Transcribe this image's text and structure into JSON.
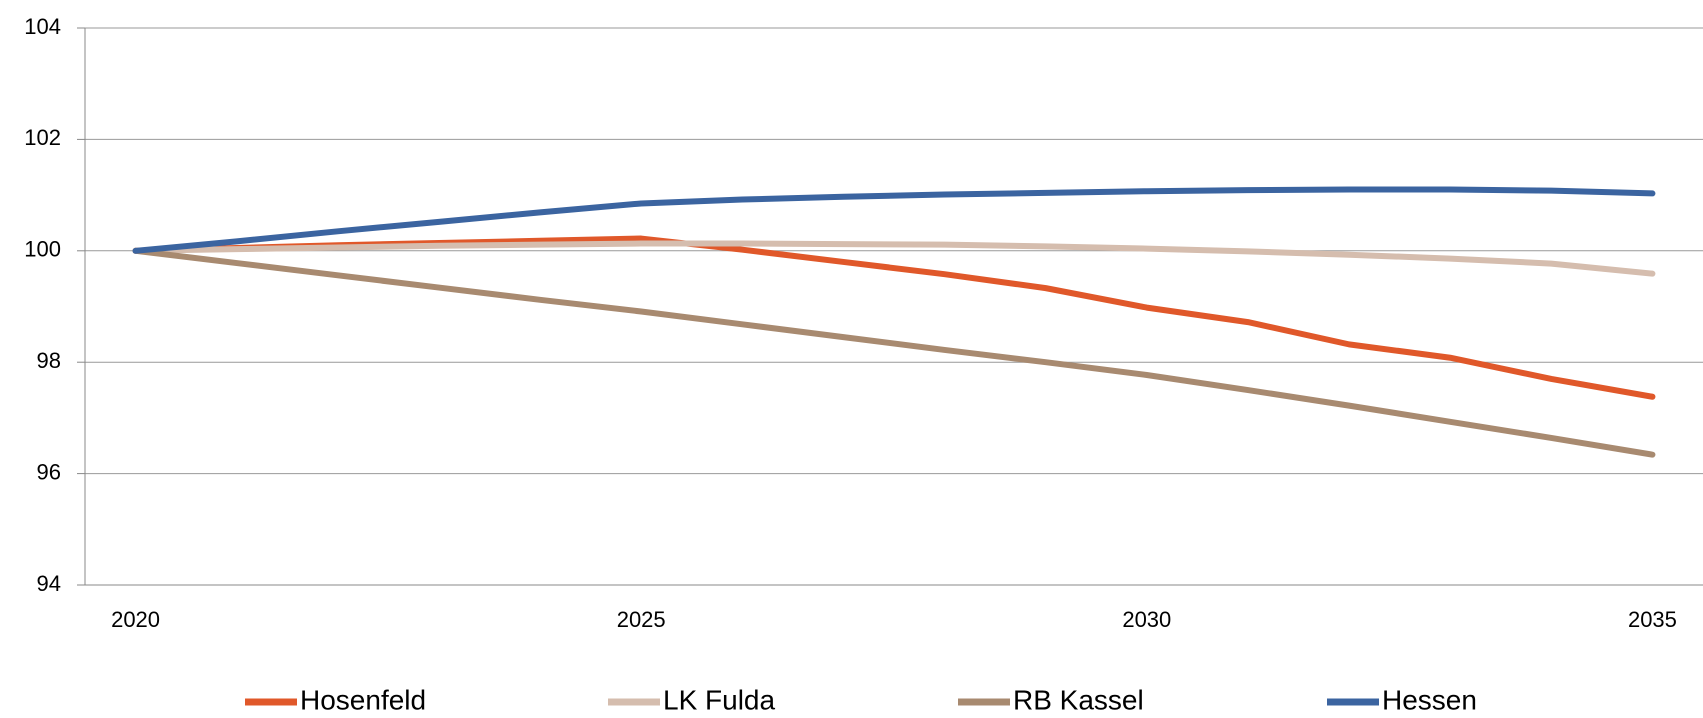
{
  "chart_data": {
    "type": "line",
    "x": [
      2020,
      2021,
      2022,
      2023,
      2024,
      2025,
      2026,
      2027,
      2028,
      2029,
      2030,
      2031,
      2032,
      2033,
      2034,
      2035
    ],
    "series": [
      {
        "name": "Hosenfeld",
        "color": "#e0582a",
        "values": [
          100,
          100.05,
          100.1,
          100.14,
          100.18,
          100.22,
          100.02,
          99.8,
          99.58,
          99.33,
          98.98,
          98.72,
          98.32,
          98.08,
          97.7,
          97.38
        ]
      },
      {
        "name": "LK Fulda",
        "color": "#d5bdae",
        "values": [
          100,
          100.03,
          100.06,
          100.09,
          100.11,
          100.13,
          100.13,
          100.12,
          100.11,
          100.08,
          100.04,
          99.99,
          99.93,
          99.86,
          99.77,
          99.59
        ]
      },
      {
        "name": "RB Kassel",
        "color": "#a88a70",
        "values": [
          100,
          99.78,
          99.56,
          99.34,
          99.12,
          98.91,
          98.68,
          98.45,
          98.22,
          98.0,
          97.77,
          97.5,
          97.22,
          96.93,
          96.64,
          96.34
        ]
      },
      {
        "name": "Hessen",
        "color": "#3b64a0",
        "values": [
          100,
          100.17,
          100.35,
          100.52,
          100.69,
          100.85,
          100.92,
          100.97,
          101.01,
          101.04,
          101.07,
          101.09,
          101.1,
          101.1,
          101.08,
          101.03
        ]
      }
    ],
    "xlim": [
      2019.5,
      2035.5
    ],
    "xticks": [
      2020,
      2025,
      2030,
      2035
    ],
    "ylim": [
      94,
      104
    ],
    "yticks": [
      94,
      96,
      98,
      100,
      102,
      104
    ],
    "grid": true,
    "legend": "bottom"
  }
}
